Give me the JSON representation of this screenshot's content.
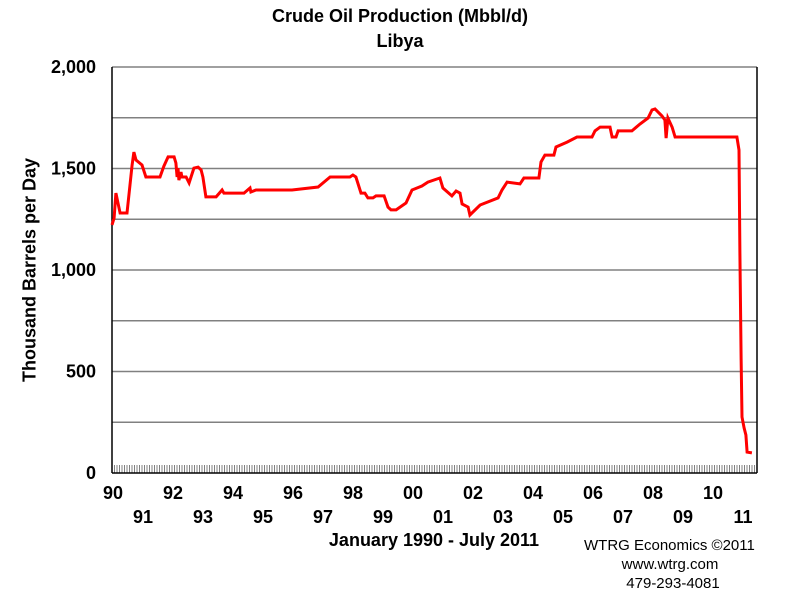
{
  "chart_data": {
    "type": "line",
    "title": "Crude Oil Production (Mbbl/d)",
    "subtitle": "Libya",
    "ylabel": "Thousand Barrels per Day",
    "xlabel": "January 1990 - July 2011",
    "ylim": [
      0,
      2000
    ],
    "xlim": [
      1990,
      2011.5
    ],
    "grid": true,
    "yticks": [
      0,
      500,
      1000,
      1500,
      2000
    ],
    "ytick_labels": [
      "0",
      "500",
      "1,000",
      "1,500",
      "2,000"
    ],
    "xtick_labels_even": [
      "90",
      "92",
      "94",
      "96",
      "98",
      "00",
      "02",
      "04",
      "06",
      "08",
      "10"
    ],
    "xtick_labels_odd": [
      "91",
      "93",
      "95",
      "97",
      "99",
      "01",
      "03",
      "05",
      "07",
      "09",
      "11"
    ],
    "series": [
      {
        "name": "Libya",
        "color": "#ff0000",
        "points": [
          [
            1990.0,
            1222
          ],
          [
            1990.07,
            1256
          ],
          [
            1990.13,
            1379
          ],
          [
            1990.27,
            1281
          ],
          [
            1990.5,
            1281
          ],
          [
            1990.6,
            1419
          ],
          [
            1990.67,
            1517
          ],
          [
            1990.73,
            1581
          ],
          [
            1990.8,
            1542
          ],
          [
            1991.0,
            1517
          ],
          [
            1991.13,
            1458
          ],
          [
            1991.6,
            1458
          ],
          [
            1991.73,
            1512
          ],
          [
            1991.87,
            1557
          ],
          [
            1992.07,
            1557
          ],
          [
            1992.13,
            1527
          ],
          [
            1992.17,
            1458
          ],
          [
            1992.2,
            1502
          ],
          [
            1992.23,
            1443
          ],
          [
            1992.3,
            1483
          ],
          [
            1992.33,
            1458
          ],
          [
            1992.47,
            1458
          ],
          [
            1992.57,
            1429
          ],
          [
            1992.73,
            1502
          ],
          [
            1992.87,
            1507
          ],
          [
            1992.97,
            1493
          ],
          [
            1993.03,
            1458
          ],
          [
            1993.13,
            1360
          ],
          [
            1993.47,
            1360
          ],
          [
            1993.67,
            1394
          ],
          [
            1993.73,
            1379
          ],
          [
            1994.4,
            1379
          ],
          [
            1994.6,
            1404
          ],
          [
            1994.63,
            1384
          ],
          [
            1994.8,
            1394
          ],
          [
            1996.0,
            1394
          ],
          [
            1996.87,
            1409
          ],
          [
            1997.27,
            1458
          ],
          [
            1997.93,
            1458
          ],
          [
            1998.03,
            1468
          ],
          [
            1998.13,
            1458
          ],
          [
            1998.3,
            1379
          ],
          [
            1998.43,
            1379
          ],
          [
            1998.53,
            1355
          ],
          [
            1998.7,
            1355
          ],
          [
            1998.8,
            1365
          ],
          [
            1999.07,
            1365
          ],
          [
            1999.2,
            1310
          ],
          [
            1999.3,
            1296
          ],
          [
            1999.47,
            1296
          ],
          [
            1999.8,
            1330
          ],
          [
            2000.0,
            1394
          ],
          [
            2000.33,
            1414
          ],
          [
            2000.53,
            1433
          ],
          [
            2000.93,
            1453
          ],
          [
            2001.03,
            1404
          ],
          [
            2001.33,
            1365
          ],
          [
            2001.47,
            1389
          ],
          [
            2001.6,
            1379
          ],
          [
            2001.67,
            1325
          ],
          [
            2001.87,
            1310
          ],
          [
            2001.93,
            1271
          ],
          [
            2002.27,
            1320
          ],
          [
            2002.87,
            1355
          ],
          [
            2003.0,
            1394
          ],
          [
            2003.17,
            1433
          ],
          [
            2003.6,
            1424
          ],
          [
            2003.73,
            1453
          ],
          [
            2004.23,
            1453
          ],
          [
            2004.3,
            1532
          ],
          [
            2004.43,
            1566
          ],
          [
            2004.73,
            1566
          ],
          [
            2004.8,
            1606
          ],
          [
            2005.17,
            1630
          ],
          [
            2005.5,
            1655
          ],
          [
            2006.0,
            1655
          ],
          [
            2006.1,
            1685
          ],
          [
            2006.27,
            1704
          ],
          [
            2006.6,
            1704
          ],
          [
            2006.67,
            1655
          ],
          [
            2006.8,
            1655
          ],
          [
            2006.87,
            1685
          ],
          [
            2007.33,
            1685
          ],
          [
            2007.6,
            1719
          ],
          [
            2007.87,
            1749
          ],
          [
            2008.0,
            1788
          ],
          [
            2008.1,
            1793
          ],
          [
            2008.33,
            1759
          ],
          [
            2008.43,
            1739
          ],
          [
            2008.47,
            1650
          ],
          [
            2008.53,
            1749
          ],
          [
            2008.67,
            1704
          ],
          [
            2008.77,
            1655
          ],
          [
            2010.83,
            1655
          ],
          [
            2010.9,
            1591
          ],
          [
            2010.93,
            1084
          ],
          [
            2010.97,
            567
          ],
          [
            2011.0,
            276
          ],
          [
            2011.07,
            222
          ],
          [
            2011.13,
            187
          ],
          [
            2011.17,
            103
          ],
          [
            2011.33,
            99
          ]
        ]
      }
    ]
  },
  "footer": {
    "credit": "WTRG Economics  ©2011",
    "website": "www.wtrg.com",
    "phone": "479-293-4081"
  }
}
